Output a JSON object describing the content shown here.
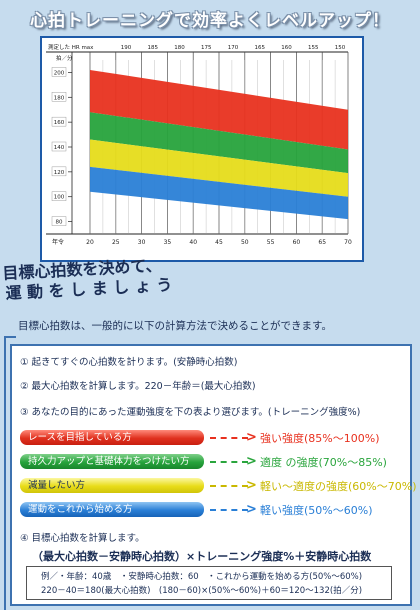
{
  "page": {
    "title": "心拍トレーニングで効率よくレベルアップ！",
    "heading_line1": "目標心拍数を決めて、",
    "heading_line2": "運 動 を し ま し ょ う",
    "intro": "目標心拍数は、一般的に以下の計算方法で決めることができます。"
  },
  "chart_data": {
    "type": "area",
    "corner_label_top": "測定した HR max",
    "corner_label_unit": "拍／分",
    "x_axis_label": "年令",
    "x": [
      20,
      25,
      30,
      35,
      40,
      45,
      50,
      55,
      60,
      65,
      70
    ],
    "hrmax_ticks": [
      190,
      185,
      180,
      175,
      170,
      165,
      160,
      155,
      150
    ],
    "y_ticks": [
      200,
      180,
      160,
      140,
      120,
      100,
      80
    ],
    "xlim": [
      20,
      70
    ],
    "ylim": [
      70,
      210
    ],
    "grid": true,
    "bands": [
      {
        "color": "#e8311f",
        "y_at_20": [
          168,
          202
        ],
        "y_at_70": [
          138,
          170
        ]
      },
      {
        "color": "#27a33c",
        "y_at_20": [
          146,
          168
        ],
        "y_at_70": [
          119,
          138
        ]
      },
      {
        "color": "#e6dc1a",
        "y_at_20": [
          124,
          146
        ],
        "y_at_70": [
          100,
          119
        ]
      },
      {
        "color": "#2a7fd6",
        "y_at_20": [
          104,
          124
        ],
        "y_at_70": [
          82,
          100
        ]
      }
    ]
  },
  "steps": {
    "s1": "① 起きてすぐの心拍数を計ります。(安静時心拍数)",
    "s2": "② 最大心拍数を計算します。220－年齢＝(最大心拍数)",
    "s3": "③ あなたの目的にあった運動強度を下の表より選びます。(トレーニング強度%)",
    "s4": "④ 目標心拍数を計算します。"
  },
  "levels": [
    {
      "label": "レースを目指している方",
      "intensity": "強い強度(85%〜100%)",
      "color": "#e8311f"
    },
    {
      "label": "持久力アップと基礎体力をつけたい方",
      "intensity": "適度 の強度(70%〜85%)",
      "color": "#2aa53d"
    },
    {
      "label": "減量したい方",
      "intensity": "軽い〜適度の強度(60%〜70%)",
      "color": "#c9b800"
    },
    {
      "label": "運動をこれから始める方",
      "intensity": "軽い強度(50%〜60%)",
      "color": "#2a7fd6"
    }
  ],
  "formula": "（最大心拍数－安静時心拍数）×トレーニング強度%＋安静時心拍数",
  "example": {
    "line1": "例／・年齢：40歳　・安静時心拍数：60　・これから運動を始める方(50%〜60%)",
    "line2": "220－40＝180(最大心拍数)　(180－60)×(50%〜60%)＋60＝120〜132(拍／分)"
  }
}
